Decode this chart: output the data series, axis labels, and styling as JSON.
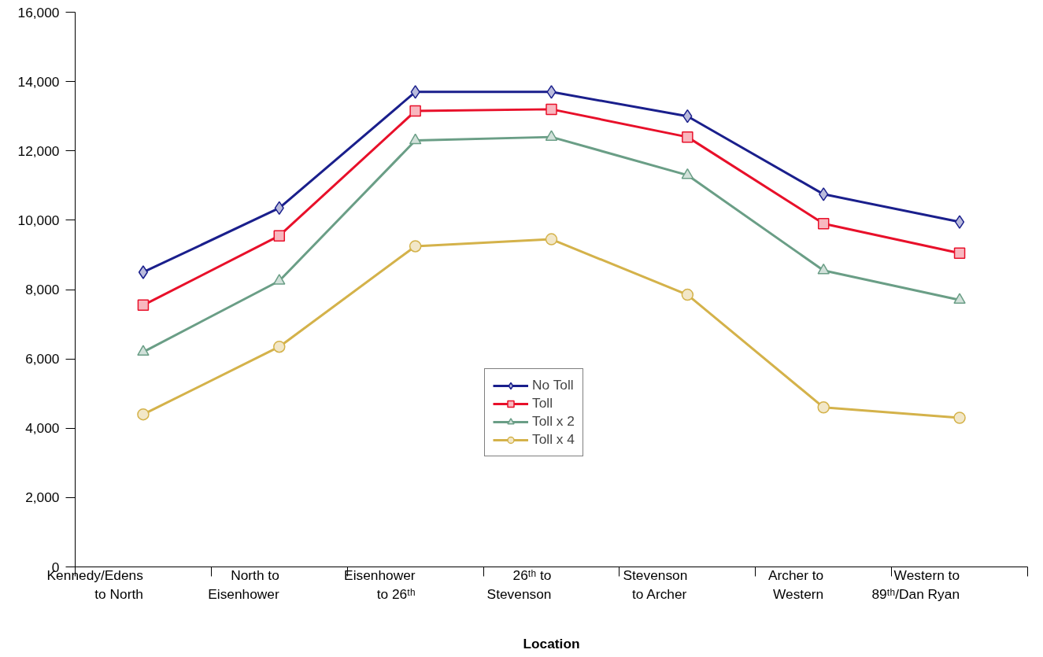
{
  "chart_data": {
    "type": "line",
    "xlabel": "Location",
    "categories": [
      "Kennedy/Edens\nto North",
      "North to\nEisenhower",
      "Eisenhower\nto 26ᵗʰ",
      "26ᵗʰ to\nStevenson",
      "Stevenson\nto Archer",
      "Archer to\nWestern",
      "Western to\n89ᵗʰ/Dan Ryan"
    ],
    "series": [
      {
        "name": "No Toll",
        "color": "#1a1f8c",
        "marker": "diamond",
        "values": [
          8500,
          10350,
          13700,
          13700,
          13000,
          10750,
          9950
        ]
      },
      {
        "name": "Toll",
        "color": "#e8102a",
        "marker": "square",
        "values": [
          7550,
          9550,
          13150,
          13200,
          12400,
          9900,
          9050
        ]
      },
      {
        "name": "Toll x 2",
        "color": "#6a9e86",
        "marker": "triangle",
        "values": [
          6200,
          8250,
          12300,
          12400,
          11300,
          8550,
          7700
        ]
      },
      {
        "name": "Toll x 4",
        "color": "#d4b24a",
        "marker": "circle",
        "values": [
          4400,
          6350,
          9250,
          9450,
          7850,
          4600,
          4300
        ]
      }
    ],
    "ylim": [
      0,
      16000
    ],
    "yticks": [
      {
        "value": 0,
        "label": "0"
      },
      {
        "value": 2000,
        "label": "2,000"
      },
      {
        "value": 4000,
        "label": "4,000"
      },
      {
        "value": 6000,
        "label": "6,000"
      },
      {
        "value": 8000,
        "label": "8,000"
      },
      {
        "value": 10000,
        "label": "10,000"
      },
      {
        "value": 12000,
        "label": "12,000"
      },
      {
        "value": 14000,
        "label": "14,000"
      },
      {
        "value": 16000,
        "label": "16,000"
      }
    ],
    "grid": false,
    "legend": "center",
    "line_style": "solid"
  }
}
